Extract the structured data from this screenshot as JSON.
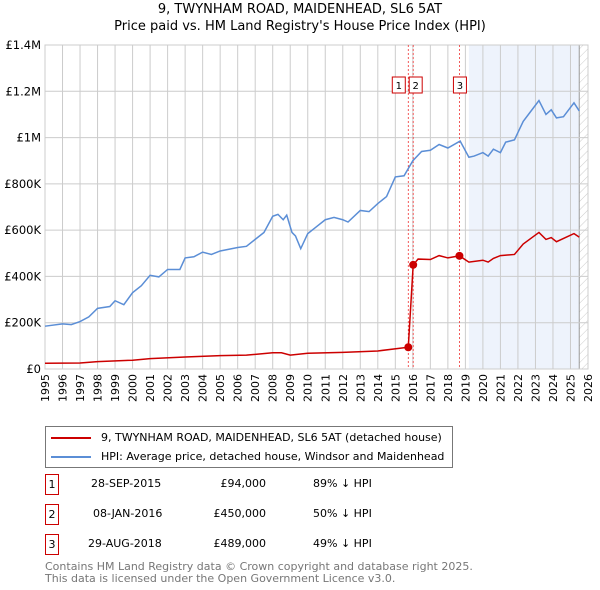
{
  "title": "9, TWYNHAM ROAD, MAIDENHEAD, SL6 5AT",
  "subtitle": "Price paid vs. HM Land Registry's House Price Index (HPI)",
  "chart_data": {
    "type": "line",
    "ylim": [
      0,
      1400000
    ],
    "xlim": [
      1995,
      2026
    ],
    "yticks": [
      {
        "v": 0,
        "l": "£0"
      },
      {
        "v": 200000,
        "l": "£200K"
      },
      {
        "v": 400000,
        "l": "£400K"
      },
      {
        "v": 600000,
        "l": "£600K"
      },
      {
        "v": 800000,
        "l": "£800K"
      },
      {
        "v": 1000000,
        "l": "£1M"
      },
      {
        "v": 1200000,
        "l": "£1.2M"
      },
      {
        "v": 1400000,
        "l": "£1.4M"
      }
    ],
    "xticks": [
      "1995",
      "1996",
      "1997",
      "1998",
      "1999",
      "2000",
      "2001",
      "2002",
      "2003",
      "2004",
      "2005",
      "2006",
      "2007",
      "2008",
      "2009",
      "2010",
      "2011",
      "2012",
      "2013",
      "2014",
      "2015",
      "2016",
      "2017",
      "2018",
      "2019",
      "2020",
      "2021",
      "2022",
      "2023",
      "2024",
      "2025",
      "2026"
    ],
    "shaded_range": [
      2019.2,
      2025.5
    ],
    "hatched_from": 2025.5,
    "series": [
      {
        "name": "9, TWYNHAM ROAD, MAIDENHEAD, SL6 5AT (detached house)",
        "color": "#cc0000",
        "points": [
          [
            1995,
            25
          ],
          [
            1997,
            26
          ],
          [
            1998,
            32
          ],
          [
            2000,
            38
          ],
          [
            2001,
            45
          ],
          [
            2003,
            52
          ],
          [
            2005,
            58
          ],
          [
            2006.5,
            60
          ],
          [
            2008,
            70
          ],
          [
            2008.5,
            70
          ],
          [
            2009,
            60
          ],
          [
            2010,
            68
          ],
          [
            2012,
            72
          ],
          [
            2014,
            78
          ],
          [
            2015.74,
            94
          ],
          [
            2016.02,
            450
          ],
          [
            2016.3,
            475
          ],
          [
            2017,
            473
          ],
          [
            2017.5,
            490
          ],
          [
            2018,
            480
          ],
          [
            2018.66,
            489
          ],
          [
            2019.2,
            462
          ],
          [
            2020,
            470
          ],
          [
            2020.3,
            462
          ],
          [
            2020.6,
            478
          ],
          [
            2021,
            490
          ],
          [
            2021.8,
            495
          ],
          [
            2022.3,
            540
          ],
          [
            2023.2,
            590
          ],
          [
            2023.6,
            560
          ],
          [
            2023.9,
            568
          ],
          [
            2024.2,
            550
          ],
          [
            2025.2,
            585
          ],
          [
            2025.5,
            570
          ]
        ]
      },
      {
        "name": "HPI: Average price, detached house, Windsor and Maidenhead",
        "color": "#5b8ed6",
        "points": [
          [
            1995,
            185
          ],
          [
            1996,
            195
          ],
          [
            1996.5,
            192
          ],
          [
            1997,
            205
          ],
          [
            1997.5,
            225
          ],
          [
            1998,
            262
          ],
          [
            1998.7,
            270
          ],
          [
            1999,
            295
          ],
          [
            1999.5,
            278
          ],
          [
            2000,
            330
          ],
          [
            2000.5,
            360
          ],
          [
            2001,
            405
          ],
          [
            2001.5,
            398
          ],
          [
            2002,
            430
          ],
          [
            2002.7,
            430
          ],
          [
            2003,
            480
          ],
          [
            2003.5,
            485
          ],
          [
            2004,
            505
          ],
          [
            2004.5,
            495
          ],
          [
            2005,
            510
          ],
          [
            2006,
            525
          ],
          [
            2006.5,
            530
          ],
          [
            2007,
            560
          ],
          [
            2007.5,
            590
          ],
          [
            2008,
            660
          ],
          [
            2008.3,
            668
          ],
          [
            2008.6,
            645
          ],
          [
            2008.8,
            665
          ],
          [
            2009.1,
            590
          ],
          [
            2009.3,
            575
          ],
          [
            2009.6,
            520
          ],
          [
            2010,
            585
          ],
          [
            2010.5,
            615
          ],
          [
            2011,
            645
          ],
          [
            2011.5,
            655
          ],
          [
            2012,
            645
          ],
          [
            2012.3,
            635
          ],
          [
            2013,
            685
          ],
          [
            2013.5,
            680
          ],
          [
            2014,
            715
          ],
          [
            2014.5,
            745
          ],
          [
            2015,
            830
          ],
          [
            2015.5,
            835
          ],
          [
            2016,
            900
          ],
          [
            2016.5,
            940
          ],
          [
            2017,
            945
          ],
          [
            2017.5,
            970
          ],
          [
            2018,
            955
          ],
          [
            2018.7,
            985
          ],
          [
            2019.2,
            915
          ],
          [
            2019.5,
            920
          ],
          [
            2020,
            935
          ],
          [
            2020.3,
            920
          ],
          [
            2020.6,
            950
          ],
          [
            2021,
            935
          ],
          [
            2021.3,
            980
          ],
          [
            2021.8,
            990
          ],
          [
            2022.3,
            1070
          ],
          [
            2022.7,
            1110
          ],
          [
            2023.2,
            1160
          ],
          [
            2023.6,
            1100
          ],
          [
            2023.9,
            1120
          ],
          [
            2024.2,
            1085
          ],
          [
            2024.6,
            1090
          ],
          [
            2025.2,
            1150
          ],
          [
            2025.5,
            1115
          ]
        ]
      }
    ],
    "sales": [
      {
        "label": "1",
        "x": 2015.74,
        "y": 94000
      },
      {
        "label": "2",
        "x": 2016.02,
        "y": 450000
      },
      {
        "label": "3",
        "x": 2018.66,
        "y": 489000
      }
    ]
  },
  "legend": [
    "9, TWYNHAM ROAD, MAIDENHEAD, SL6 5AT (detached house)",
    "HPI: Average price, detached house, Windsor and Maidenhead"
  ],
  "transactions": [
    {
      "num": "1",
      "date": "28-SEP-2015",
      "price": "£94,000",
      "hpi": "89% ↓ HPI"
    },
    {
      "num": "2",
      "date": "08-JAN-2016",
      "price": "£450,000",
      "hpi": "50% ↓ HPI"
    },
    {
      "num": "3",
      "date": "29-AUG-2018",
      "price": "£489,000",
      "hpi": "49% ↓ HPI"
    }
  ],
  "footer": [
    "Contains HM Land Registry data © Crown copyright and database right 2025.",
    "This data is licensed under the Open Government Licence v3.0."
  ]
}
